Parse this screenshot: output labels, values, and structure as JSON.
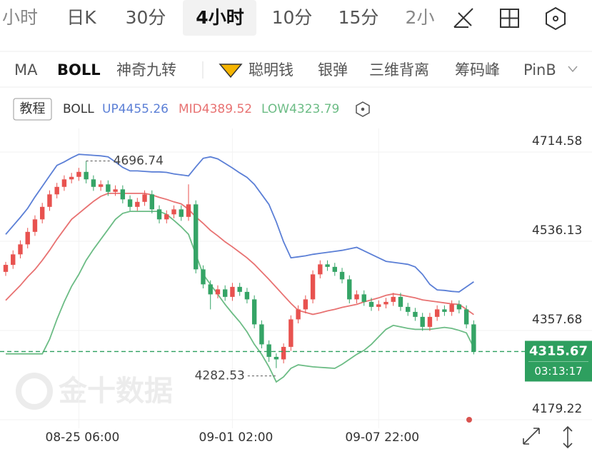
{
  "tabs": [
    "小时",
    "日K",
    "30分",
    "4小时",
    "10分",
    "15分",
    "2小"
  ],
  "active_tab": 3,
  "indicators": [
    "MA",
    "BOLL",
    "神奇九转",
    "聪明钱",
    "银弹",
    "三维背离",
    "筹码峰",
    "PinB"
  ],
  "tutorial": "教程",
  "indicator_name": "BOLL",
  "countdown": "03:13:17",
  "watermark": "金十数据",
  "chart_data": {
    "type": "candlestick",
    "up_color": "#e8524f",
    "down_color": "#35a466",
    "categories": [
      null,
      null,
      null,
      null,
      null,
      null,
      null,
      null,
      null,
      null,
      "08-25 06:00",
      null,
      null,
      null,
      null,
      null,
      null,
      null,
      null,
      null,
      null,
      null,
      null,
      null,
      null,
      null,
      null,
      null,
      null,
      null,
      null,
      "09-01 02:00",
      null,
      null,
      null,
      null,
      null,
      null,
      null,
      null,
      null,
      null,
      null,
      null,
      null,
      null,
      null,
      null,
      null,
      null,
      null,
      "09-07 22:00",
      null,
      null,
      null,
      null,
      null,
      null,
      null,
      null,
      null,
      null,
      null,
      null,
      null
    ],
    "ohlc": [
      [
        4475,
        4495,
        4467,
        4489
      ],
      [
        4489,
        4518,
        4481,
        4510
      ],
      [
        4510,
        4538,
        4502,
        4530
      ],
      [
        4530,
        4563,
        4522,
        4555
      ],
      [
        4555,
        4588,
        4547,
        4580
      ],
      [
        4580,
        4613,
        4572,
        4605
      ],
      [
        4605,
        4638,
        4597,
        4630
      ],
      [
        4630,
        4653,
        4622,
        4645
      ],
      [
        4645,
        4668,
        4637,
        4660
      ],
      [
        4660,
        4673,
        4652,
        4665
      ],
      [
        4665,
        4683,
        4657,
        4675
      ],
      [
        4675,
        4696.74,
        4652,
        4660
      ],
      [
        4660,
        4668,
        4637,
        4645
      ],
      [
        4645,
        4658,
        4637,
        4650
      ],
      [
        4650,
        4658,
        4627,
        4635
      ],
      [
        4635,
        4648,
        4627,
        4640
      ],
      [
        4640,
        4648,
        4612,
        4620
      ],
      [
        4620,
        4628,
        4597,
        4605
      ],
      [
        4605,
        4623,
        4597,
        4615
      ],
      [
        4615,
        4638,
        4607,
        4630
      ],
      [
        4630,
        4638,
        4592,
        4600
      ],
      [
        4600,
        4608,
        4572,
        4580
      ],
      [
        4580,
        4598,
        4572,
        4590
      ],
      [
        4590,
        4608,
        4582,
        4600
      ],
      [
        4600,
        4608,
        4577,
        4585
      ],
      [
        4585,
        4650,
        4577,
        4610
      ],
      [
        4610,
        4618,
        4472,
        4480
      ],
      [
        4480,
        4488,
        4442,
        4450
      ],
      [
        4450,
        4458,
        4400,
        4430
      ],
      [
        4430,
        4448,
        4422,
        4440
      ],
      [
        4440,
        4448,
        4417,
        4425
      ],
      [
        4425,
        4453,
        4417,
        4445
      ],
      [
        4445,
        4453,
        4427,
        4435
      ],
      [
        4435,
        4443,
        4412,
        4420
      ],
      [
        4420,
        4428,
        4362,
        4370
      ],
      [
        4370,
        4378,
        4322,
        4330
      ],
      [
        4330,
        4338,
        4295,
        4305
      ],
      [
        4305,
        4312,
        4282.53,
        4300
      ],
      [
        4300,
        4332,
        4292,
        4325
      ],
      [
        4325,
        4388,
        4317,
        4380
      ],
      [
        4380,
        4408,
        4372,
        4400
      ],
      [
        4400,
        4428,
        4392,
        4420
      ],
      [
        4420,
        4478,
        4412,
        4470
      ],
      [
        4470,
        4498,
        4462,
        4490
      ],
      [
        4490,
        4498,
        4477,
        4485
      ],
      [
        4485,
        4493,
        4467,
        4475
      ],
      [
        4475,
        4483,
        4452,
        4460
      ],
      [
        4460,
        4468,
        4412,
        4420
      ],
      [
        4420,
        4438,
        4412,
        4430
      ],
      [
        4430,
        4438,
        4407,
        4415
      ],
      [
        4415,
        4423,
        4397,
        4405
      ],
      [
        4405,
        4418,
        4397,
        4410
      ],
      [
        4410,
        4423,
        4402,
        4415
      ],
      [
        4415,
        4433,
        4407,
        4425
      ],
      [
        4425,
        4433,
        4397,
        4405
      ],
      [
        4405,
        4413,
        4387,
        4395
      ],
      [
        4395,
        4403,
        4377,
        4385
      ],
      [
        4385,
        4393,
        4357,
        4365
      ],
      [
        4365,
        4393,
        4357,
        4385
      ],
      [
        4385,
        4408,
        4377,
        4400
      ],
      [
        4400,
        4408,
        4387,
        4395
      ],
      [
        4395,
        4418,
        4387,
        4410
      ],
      [
        4410,
        4418,
        4392,
        4400
      ],
      [
        4400,
        4408,
        4362,
        4370
      ],
      [
        4370,
        4378,
        4310,
        4315.67
      ]
    ],
    "series": [
      {
        "name": "UP",
        "color": "#5b7fd6",
        "values": [
          4550,
          4567,
          4584,
          4602,
          4625,
          4646,
          4667,
          4688,
          4695,
          4703,
          4710,
          4709,
          4708,
          4707,
          4705,
          4695,
          4684,
          4677,
          4677,
          4676,
          4675,
          4675,
          4674,
          4671,
          4669,
          4667,
          4685,
          4702,
          4705,
          4701,
          4692,
          4683,
          4673,
          4664,
          4650,
          4630,
          4610,
          4575,
          4535,
          4503,
          4505,
          4507,
          4510,
          4512,
          4514,
          4516,
          4518,
          4521,
          4524,
          4517,
          4510,
          4503,
          4496,
          4494,
          4492,
          4490,
          4485,
          4470,
          4450,
          4439,
          4438,
          4436,
          4435,
          4445,
          4455.26
        ]
      },
      {
        "name": "MID",
        "color": "#e87272",
        "values": [
          4418,
          4433,
          4448,
          4465,
          4480,
          4498,
          4518,
          4540,
          4560,
          4580,
          4592,
          4604,
          4616,
          4626,
          4632,
          4632,
          4632,
          4632,
          4632,
          4632,
          4629,
          4624,
          4620,
          4615,
          4611,
          4600,
          4585,
          4572,
          4558,
          4547,
          4535,
          4525,
          4514,
          4503,
          4490,
          4475,
          4460,
          4444,
          4428,
          4412,
          4398,
          4394,
          4390,
          4393,
          4397,
          4400,
          4404,
          4407,
          4410,
          4415,
          4419,
          4423,
          4428,
          4431,
          4429,
          4426,
          4423,
          4419,
          4417,
          4415,
          4413,
          4411,
          4410,
          4400,
          4389.52
        ]
      },
      {
        "name": "LOW",
        "color": "#6cbc85",
        "values": [
          4311,
          4311,
          4311,
          4311,
          4311,
          4311,
          4340,
          4380,
          4415,
          4446,
          4470,
          4498,
          4520,
          4540,
          4560,
          4580,
          4592,
          4596,
          4596,
          4596,
          4596,
          4596,
          4590,
          4578,
          4565,
          4550,
          4510,
          4470,
          4450,
          4430,
          4410,
          4392,
          4375,
          4355,
          4330,
          4310,
          4285,
          4255,
          4265,
          4282,
          4289,
          4287,
          4285,
          4284,
          4283,
          4282,
          4290,
          4300,
          4310,
          4318,
          4330,
          4345,
          4360,
          4368,
          4365,
          4362,
          4360,
          4360,
          4360,
          4362,
          4364,
          4362,
          4358,
          4353,
          4323.79
        ]
      }
    ],
    "ylim": [
      4160,
      4810
    ],
    "yticks": [
      4714.58,
      4536.13,
      4357.68,
      4179.22
    ],
    "grid": true
  }
}
